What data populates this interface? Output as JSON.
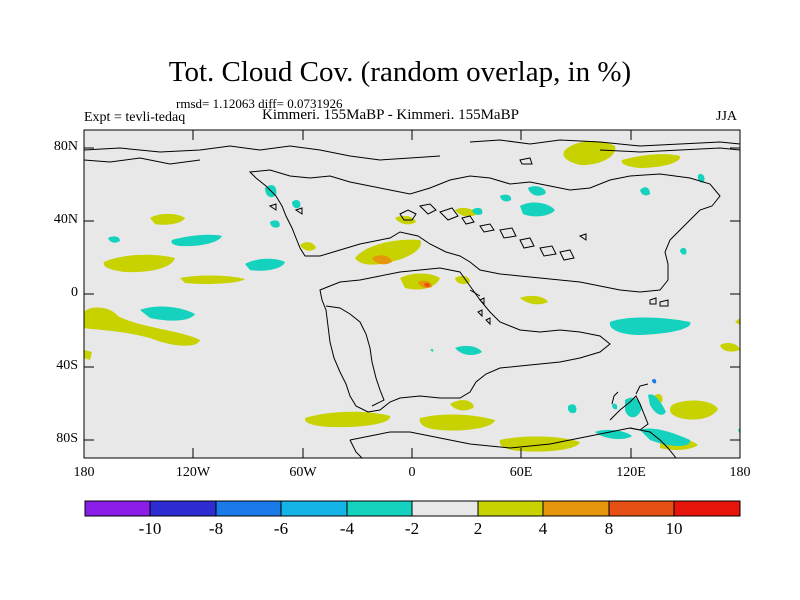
{
  "title": "Tot. Cloud Cov. (random overlap, in %)",
  "rmsd_line": "rmsd= 1.12063 diff= 0.0731926",
  "experiment": "Expt = tevli-tedaq",
  "comparison": "Kimmeri. 155MaBP - Kimmeri. 155MaBP",
  "season": "JJA",
  "y_axis_labels": [
    "80N",
    "40N",
    "0",
    "40S",
    "80S"
  ],
  "x_axis_labels": [
    "180",
    "120W",
    "60W",
    "0",
    "60E",
    "120E",
    "180"
  ],
  "colorbar": {
    "colors": [
      "#8a1ee8",
      "#2d2dd2",
      "#1a7ae8",
      "#14b4e6",
      "#14d2be",
      "#e8e8e8",
      "#c8d200",
      "#e6960a",
      "#e65014",
      "#e6140a"
    ],
    "labels": [
      "-10",
      "-8",
      "-6",
      "-4",
      "-2",
      "2",
      "4",
      "8",
      "10"
    ]
  },
  "palette": {
    "background": "#e8e8e8",
    "positive": "#c8d200",
    "strong_positive": "#e6960a",
    "very_strong_positive": "#e65014",
    "negative": "#14d2be"
  }
}
